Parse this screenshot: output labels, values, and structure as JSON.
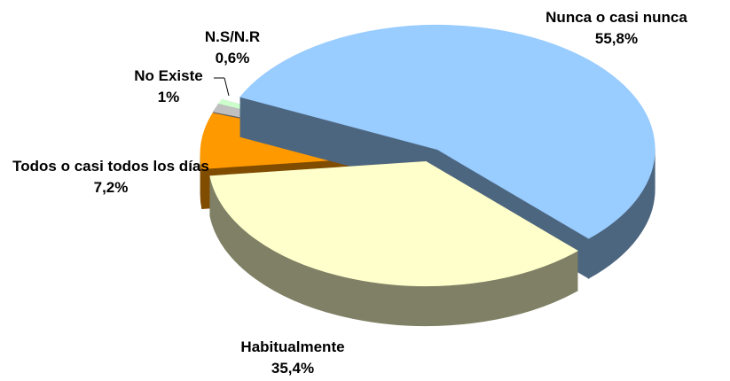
{
  "chart_data": {
    "type": "pie",
    "categories": [
      "Nunca o casi nunca",
      "Habitualmente",
      "Todos o casi todos los días",
      "No Existe",
      "N.S/N.R"
    ],
    "values": [
      55.8,
      35.4,
      7.2,
      1,
      0.6
    ],
    "value_labels": [
      "55,8%",
      "35,4%",
      "7,2%",
      "1%",
      "0,6%"
    ],
    "colors": [
      "#99ccff",
      "#ffffcc",
      "#ff9900",
      "#c0c0c0",
      "#ccffcc"
    ],
    "side_colors": [
      "#4d6680",
      "#808066",
      "#804c00",
      "#606060",
      "#668066"
    ]
  }
}
